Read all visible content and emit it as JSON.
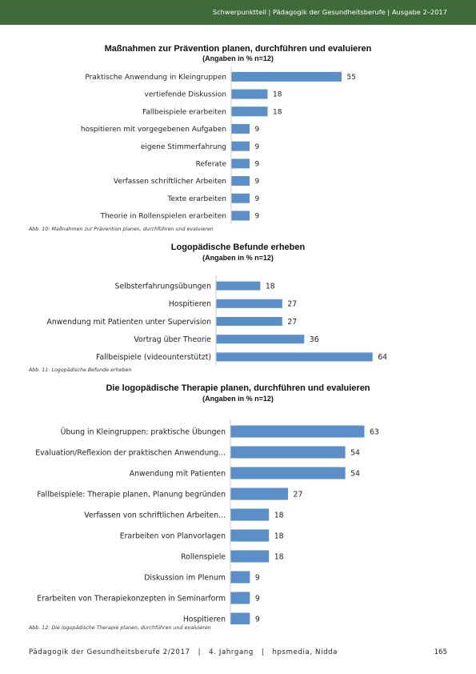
{
  "header": {
    "running_title": "Schwerpunktteil | Pädagogik der Gesundheitsberufe | Ausgabe 2–2017"
  },
  "colors": {
    "header_bg": "#3f6b3a",
    "bar": "#5b8fc7"
  },
  "chart_data": [
    {
      "type": "bar",
      "orientation": "horizontal",
      "title": "Maßnahmen zur Prävention planen, durchführen und evaluieren",
      "subtitle": "(Angaben in % n=12)",
      "categories": [
        "Praktische Anwendung in Kleingruppen",
        "vertiefende Diskussion",
        "Fallbeispiele erarbeiten",
        "hospitieren mit vorgegebenen Aufgaben",
        "eigene Stimmerfahrung",
        "Referate",
        "Verfassen schriftlicher Arbeiten",
        "Texte erarbeiten",
        "Theorie in Rollenspielen erarbeiten"
      ],
      "values": [
        55,
        18,
        18,
        9,
        9,
        9,
        9,
        9,
        9
      ],
      "caption": "Abb. 10: Maßnahmen zur Prävention planen, durchführen und evaluieren"
    },
    {
      "type": "bar",
      "orientation": "horizontal",
      "title": "Logopädische Befunde erheben",
      "subtitle": "(Angaben in % n=12)",
      "categories": [
        "Selbsterfahrungsübungen",
        "Hospitieren",
        "Anwendung mit Patienten unter Supervision",
        "Vortrag über Theorie",
        "Fallbeispiele (videounterstützt)"
      ],
      "values": [
        18,
        27,
        27,
        36,
        64
      ],
      "caption": "Abb. 11: Logopädische Befunde erheben"
    },
    {
      "type": "bar",
      "orientation": "horizontal",
      "title": "Die logopädische Therapie planen, durchführen und evaluieren",
      "subtitle": "(Angaben in % n=12)",
      "categories": [
        "Übung in Kleingruppen: praktische Übungen",
        "Evaluation/Reflexion der praktischen Anwendung...",
        "Anwendung mit Patienten",
        "Fallbeispiele: Therapie planen, Planung begründen",
        "Verfassen von schriftlichen Arbeiten...",
        "Erarbeiten von Planvorlagen",
        "Rollenspiele",
        "Diskussion im Plenum",
        "Erarbeiten von Therapiekonzepten in Seminarform",
        "Hospitieren"
      ],
      "values": [
        63,
        54,
        54,
        27,
        18,
        18,
        18,
        9,
        9,
        9
      ],
      "caption": "Abb. 12: Die logopädische Therapie planen, durchführen und evaluieren"
    }
  ],
  "footer": {
    "journal": "Pädagogik der Gesundheitsberufe 2/2017",
    "volume": "4. Jahrgang",
    "publisher": "hpsmedia, Nidda",
    "page_number": "165"
  }
}
